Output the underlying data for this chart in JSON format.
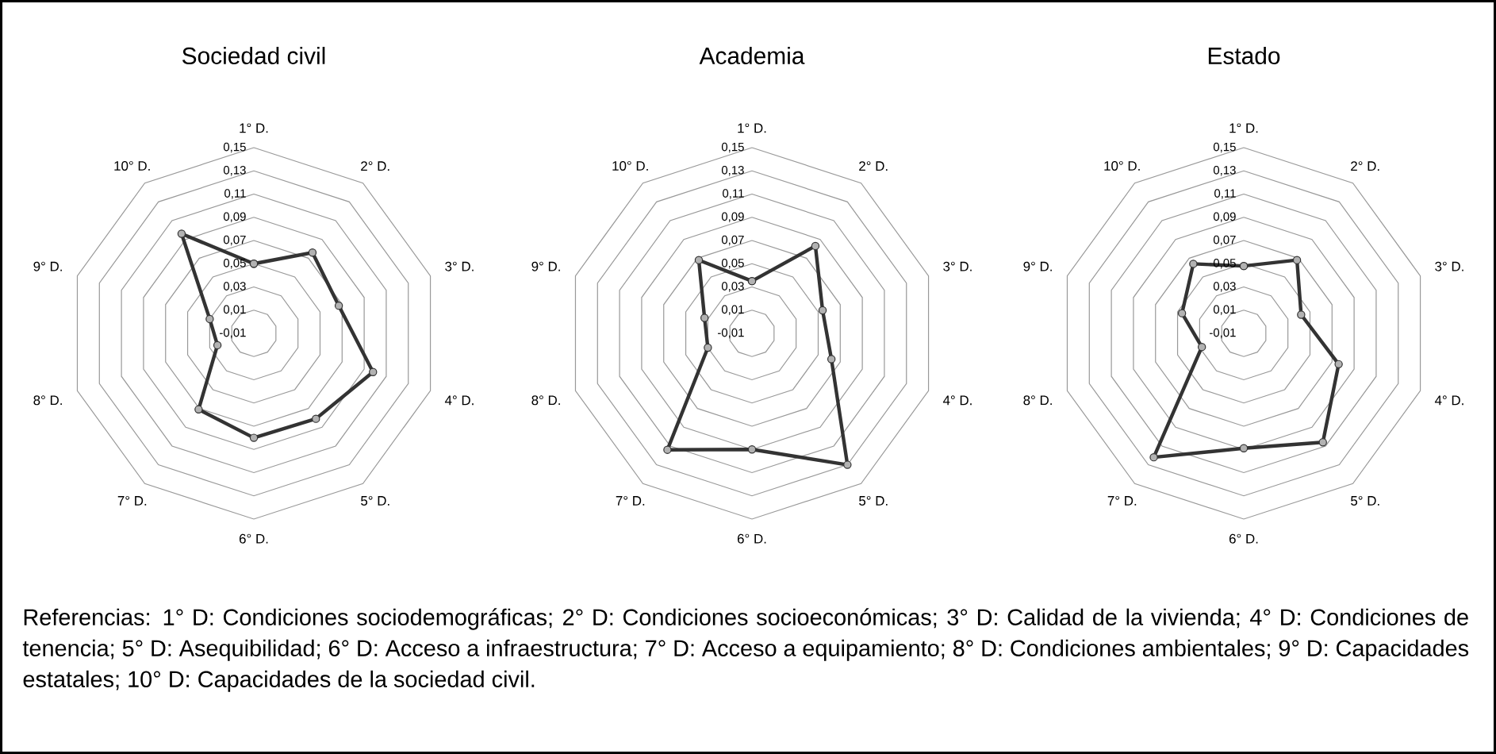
{
  "chart_data": [
    {
      "type": "radar",
      "title": "Sociedad civil",
      "categories": [
        "1° D.",
        "2° D.",
        "3° D.",
        "4° D.",
        "5° D.",
        "6° D.",
        "7° D.",
        "8° D.",
        "9° D.",
        "10° D."
      ],
      "ylim": [
        -0.01,
        0.15
      ],
      "yticks": [
        {
          "value": -0.01,
          "label": "-0,01"
        },
        {
          "value": 0.01,
          "label": "0,01"
        },
        {
          "value": 0.03,
          "label": "0,03"
        },
        {
          "value": 0.05,
          "label": "0,05"
        },
        {
          "value": 0.07,
          "label": "0,07"
        },
        {
          "value": 0.09,
          "label": "0,09"
        },
        {
          "value": 0.11,
          "label": "0,11"
        },
        {
          "value": 0.13,
          "label": "0,13"
        },
        {
          "value": 0.15,
          "label": "0,15"
        }
      ],
      "grid": true,
      "marker": "circle",
      "series": [
        {
          "color": "#333333",
          "values": [
            0.05,
            0.076,
            0.067,
            0.098,
            0.081,
            0.08,
            0.071,
            0.023,
            0.03,
            0.096
          ]
        }
      ]
    },
    {
      "type": "radar",
      "title": "Academia",
      "categories": [
        "1° D.",
        "2° D.",
        "3° D.",
        "4° D.",
        "5° D.",
        "6° D.",
        "7° D.",
        "8° D.",
        "9° D.",
        "10° D."
      ],
      "ylim": [
        -0.01,
        0.15
      ],
      "yticks": [
        {
          "value": -0.01,
          "label": "-0,01"
        },
        {
          "value": 0.01,
          "label": "0,01"
        },
        {
          "value": 0.03,
          "label": "0,03"
        },
        {
          "value": 0.05,
          "label": "0,05"
        },
        {
          "value": 0.07,
          "label": "0,07"
        },
        {
          "value": 0.09,
          "label": "0,09"
        },
        {
          "value": 0.11,
          "label": "0,11"
        },
        {
          "value": 0.13,
          "label": "0,13"
        },
        {
          "value": 0.15,
          "label": "0,15"
        }
      ],
      "grid": true,
      "marker": "circle",
      "series": [
        {
          "color": "#333333",
          "values": [
            0.035,
            0.083,
            0.054,
            0.062,
            0.13,
            0.09,
            0.114,
            0.03,
            0.033,
            0.068
          ]
        }
      ]
    },
    {
      "type": "radar",
      "title": "Estado",
      "categories": [
        "1° D.",
        "2° D.",
        "3° D.",
        "4° D.",
        "5° D.",
        "6° D.",
        "7° D.",
        "8° D.",
        "9° D.",
        "10° D."
      ],
      "ylim": [
        -0.01,
        0.15
      ],
      "yticks": [
        {
          "value": -0.01,
          "label": "-0,01"
        },
        {
          "value": 0.01,
          "label": "0,01"
        },
        {
          "value": 0.03,
          "label": "0,03"
        },
        {
          "value": 0.05,
          "label": "0,05"
        },
        {
          "value": 0.07,
          "label": "0,07"
        },
        {
          "value": 0.09,
          "label": "0,09"
        },
        {
          "value": 0.11,
          "label": "0,11"
        },
        {
          "value": 0.13,
          "label": "0,13"
        },
        {
          "value": 0.15,
          "label": "0,15"
        }
      ],
      "grid": true,
      "marker": "circle",
      "series": [
        {
          "color": "#333333",
          "values": [
            0.048,
            0.068,
            0.042,
            0.076,
            0.106,
            0.089,
            0.122,
            0.028,
            0.046,
            0.064
          ]
        }
      ]
    },
    {
      "type": "other",
      "annotations": [
        "Referencias: 1° D: Condiciones sociodemográficas; 2° D: Condiciones socioeconómicas; 3° D: Calidad de la vivienda; 4° D: Condiciones de tenencia; 5° D: Asequibilidad; 6° D: Acceso a infraestructura; 7° D: Acceso a equipamiento; 8° D: Condiciones ambientales; 9° D: Capacidades estatales; 10° D: Capacidades de la sociedad civil."
      ]
    }
  ]
}
